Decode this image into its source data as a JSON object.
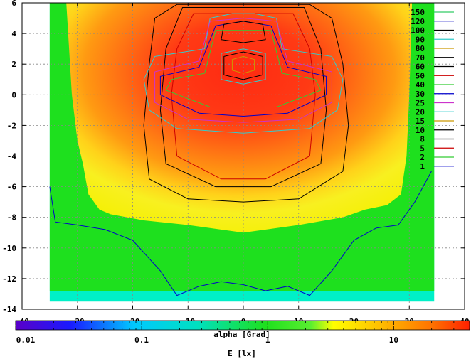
{
  "chart_data": {
    "type": "heatmap",
    "title": "",
    "xlabel": "alpha [Grad]",
    "ylabel": "",
    "xlim": [
      -40,
      40
    ],
    "ylim": [
      -14,
      6
    ],
    "x_ticks": [
      -40,
      -30,
      -20,
      -10,
      0,
      10,
      20,
      30,
      40
    ],
    "y_ticks": [
      -14,
      -12,
      -10,
      -8,
      -6,
      -4,
      -2,
      0,
      2,
      4,
      6
    ],
    "grid": true,
    "legend_position": "top-right",
    "contour_levels": [
      {
        "label": "150",
        "color": "#33cc66"
      },
      {
        "label": "120",
        "color": "#3333cc"
      },
      {
        "label": "100",
        "color": "#000000"
      },
      {
        "label": "90",
        "color": "#33cccc"
      },
      {
        "label": "80",
        "color": "#cc9900"
      },
      {
        "label": "70",
        "color": "#000000"
      },
      {
        "label": "60",
        "color": "#000000"
      },
      {
        "label": "50",
        "color": "#cc0000"
      },
      {
        "label": "40",
        "color": "#33cc33"
      },
      {
        "label": "30",
        "color": "#0000cc"
      },
      {
        "label": "25",
        "color": "#cc33cc"
      },
      {
        "label": "20",
        "color": "#33cccc"
      },
      {
        "label": "15",
        "color": "#cc9900"
      },
      {
        "label": "10",
        "color": "#000000"
      },
      {
        "label": "8",
        "color": "#000000"
      },
      {
        "label": "5",
        "color": "#cc0000"
      },
      {
        "label": "2",
        "color": "#33cc33"
      },
      {
        "label": "1",
        "color": "#0000cc"
      }
    ],
    "colorbar": {
      "label": "E [lx]",
      "scale": "log",
      "range": [
        0.01,
        40
      ],
      "tick_labels": [
        "0.01",
        "0.1",
        "1",
        "10"
      ],
      "tick_values": [
        0.01,
        0.1,
        1,
        10
      ]
    }
  }
}
